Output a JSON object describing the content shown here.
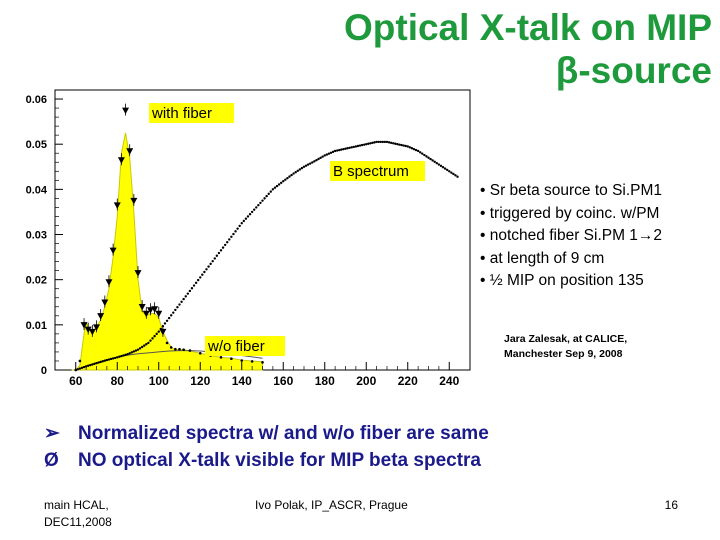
{
  "slide": {
    "title_line1": "Optical X-talk on MIP",
    "title_line2": "β-source",
    "bullets": [
      "• Sr beta source to Si.PM1",
      "• triggered by coinc. w/PM",
      "• notched fiber Si.PM 1→2",
      "• at length of 9 cm",
      "• ½ MIP on position 135"
    ],
    "credit_line1": "Jara Zalesak, at CALICE,",
    "credit_line2": "Manchester Sep 9, 2008",
    "conclusions": [
      {
        "marker": "➢",
        "text": "Normalized spectra w/ and w/o fiber are same"
      },
      {
        "marker": "Ø",
        "text": "NO optical X-talk visible for MIP beta spectra"
      }
    ],
    "footer_left_line1": "main HCAL,",
    "footer_left_line2": "DEC11,2008",
    "footer_center": "Ivo Polak, IP_ASCR, Prague",
    "footer_right": "16"
  },
  "colors": {
    "title": "#1e9a3c",
    "fill": "#ffff00",
    "fill_stroke": "#caca00",
    "marker": "#000000",
    "conclusion": "#1a1a8a"
  },
  "chart_data": {
    "type": "line",
    "title": "",
    "xlabel": "",
    "ylabel": "",
    "xlim": [
      50,
      250
    ],
    "ylim": [
      0,
      0.062
    ],
    "xticks": [
      60,
      80,
      100,
      120,
      140,
      160,
      180,
      200,
      220,
      240
    ],
    "xtick_labels": [
      "60",
      "80",
      "100",
      "120",
      "140",
      "160",
      "180",
      "200",
      "220",
      "240"
    ],
    "yticks": [
      0,
      0.01,
      0.02,
      0.03,
      0.04,
      0.05,
      0.06
    ],
    "ytick_labels": [
      "0",
      "0.01",
      "0.02",
      "0.03",
      "0.04",
      "0.05",
      "0.06"
    ],
    "series": [
      {
        "name": "with fiber",
        "style": "filled-histogram-with-triangles",
        "x": [
          58,
          60,
          62,
          64,
          65,
          66,
          68,
          70,
          72,
          74,
          76,
          78,
          80,
          82,
          84,
          86,
          88,
          90,
          92,
          94,
          96,
          98,
          100,
          102,
          104,
          106,
          108,
          110,
          112,
          115,
          120,
          125,
          130,
          135,
          140,
          145,
          150
        ],
        "y": [
          0.0,
          0.0,
          0.001,
          0.008,
          0.0105,
          0.0095,
          0.0085,
          0.0095,
          0.011,
          0.014,
          0.018,
          0.025,
          0.034,
          0.048,
          0.0525,
          0.047,
          0.035,
          0.02,
          0.013,
          0.012,
          0.0125,
          0.0125,
          0.0115,
          0.0085,
          0.0065,
          0.005,
          0.0045,
          0.0045,
          0.0045,
          0.0042,
          0.0037,
          0.0032,
          0.0028,
          0.0026,
          0.0022,
          0.002,
          0.0018
        ]
      },
      {
        "name": "w/o fiber",
        "style": "triangle-markers",
        "x": [
          60,
          62,
          64,
          66,
          68,
          70,
          72,
          74,
          76,
          78,
          80,
          82,
          84,
          86,
          88,
          90,
          92,
          94,
          96,
          98,
          100,
          102,
          104,
          106,
          108,
          110,
          112,
          115,
          120,
          125,
          130,
          135,
          140,
          145,
          150
        ],
        "y": [
          0.0,
          0.002,
          0.0095,
          0.0085,
          0.008,
          0.009,
          0.0115,
          0.0145,
          0.019,
          0.026,
          0.036,
          0.046,
          0.057,
          0.048,
          0.037,
          0.021,
          0.0135,
          0.012,
          0.0128,
          0.013,
          0.012,
          0.008,
          0.006,
          0.005,
          0.0046,
          0.0046,
          0.0045,
          0.0043,
          0.0037,
          0.0032,
          0.0028,
          0.0025,
          0.0021,
          0.0019,
          0.0017
        ]
      },
      {
        "name": "B spectrum",
        "style": "dotted-markers",
        "x": [
          60,
          65,
          70,
          75,
          80,
          85,
          90,
          95,
          100,
          105,
          110,
          115,
          120,
          125,
          130,
          135,
          140,
          145,
          150,
          155,
          160,
          165,
          170,
          175,
          180,
          185,
          190,
          195,
          200,
          205,
          210,
          215,
          220,
          225,
          230,
          235,
          240,
          245
        ],
        "y": [
          0.0,
          0.0008,
          0.0015,
          0.0022,
          0.0028,
          0.0035,
          0.0045,
          0.006,
          0.0085,
          0.0115,
          0.0145,
          0.0175,
          0.0205,
          0.0235,
          0.0265,
          0.0295,
          0.0325,
          0.035,
          0.0375,
          0.04,
          0.0418,
          0.0435,
          0.045,
          0.0462,
          0.0475,
          0.0485,
          0.049,
          0.0495,
          0.05,
          0.0505,
          0.0505,
          0.05,
          0.0495,
          0.0485,
          0.047,
          0.0455,
          0.044,
          0.0425
        ]
      },
      {
        "name": "B spectrum (w/o fiber overlay)",
        "style": "thin-line",
        "x": [
          60,
          65,
          70,
          75,
          80,
          85,
          90,
          95,
          100,
          105,
          110,
          115,
          120,
          130,
          140,
          150
        ],
        "y": [
          0.0,
          0.0008,
          0.0016,
          0.0023,
          0.0028,
          0.0033,
          0.0036,
          0.0038,
          0.004,
          0.0042,
          0.0043,
          0.0043,
          0.0042,
          0.0038,
          0.0032,
          0.0026
        ]
      }
    ],
    "annotations": [
      "with fiber",
      "B spectrum",
      "w/o fiber"
    ]
  }
}
